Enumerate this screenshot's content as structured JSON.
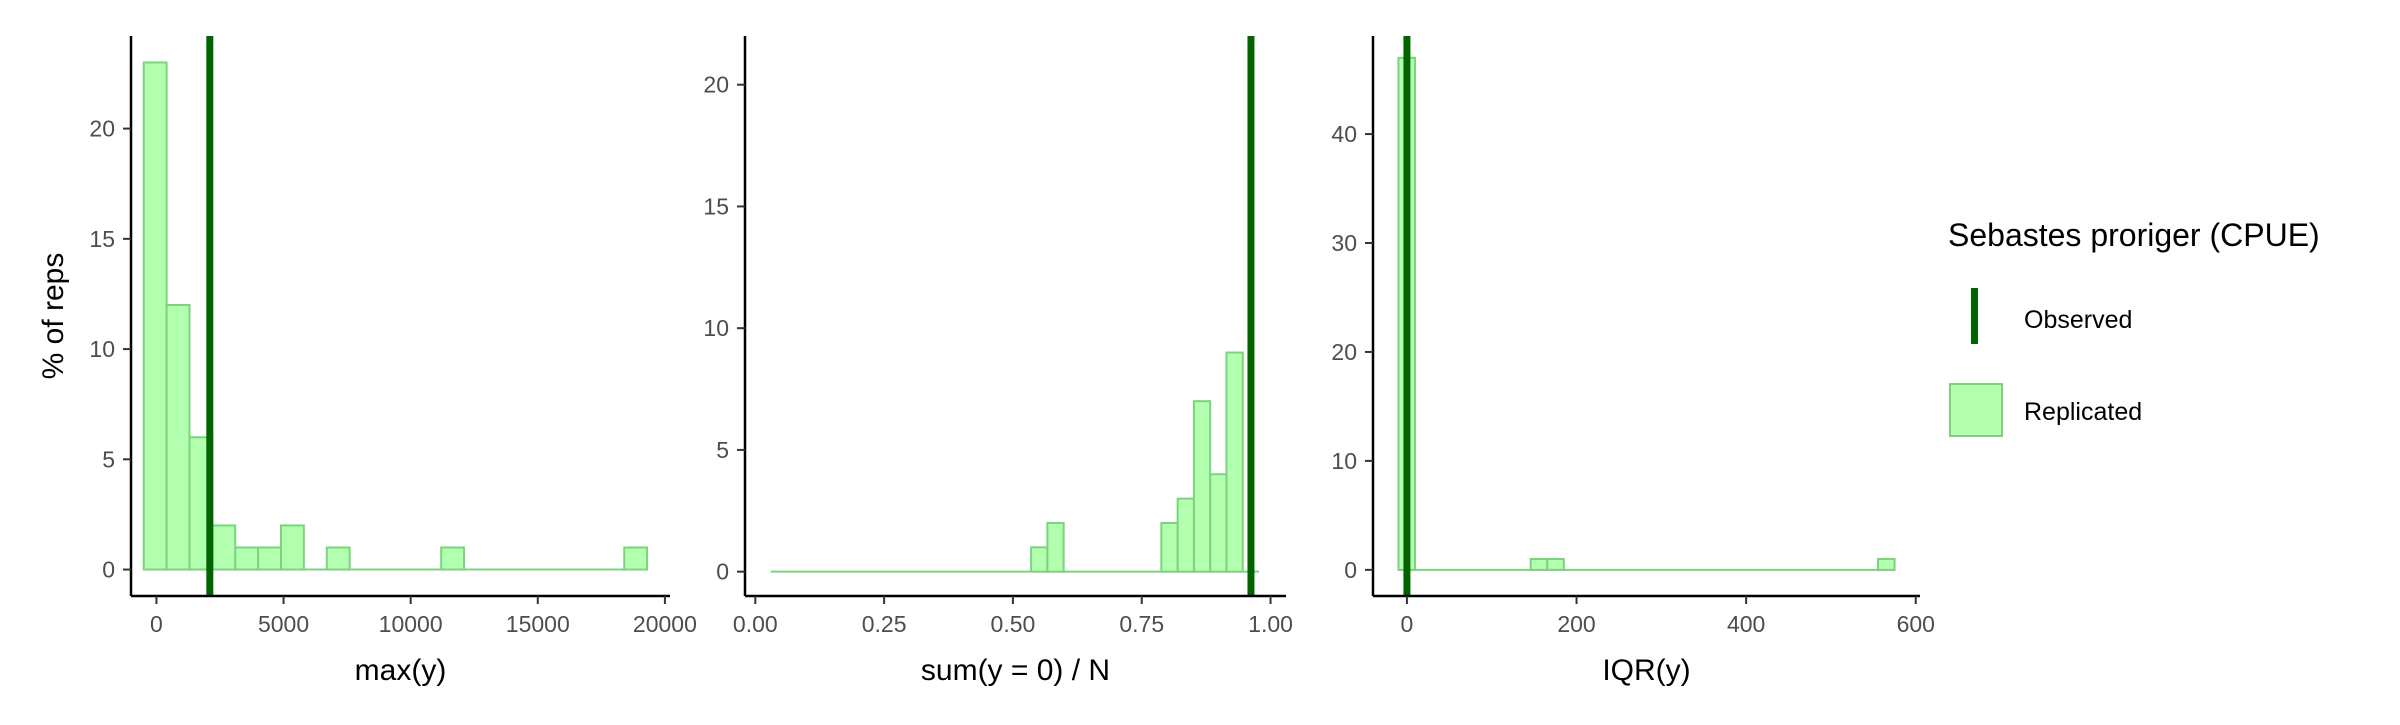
{
  "chart_data": [
    {
      "type": "bar",
      "panel": "max",
      "xlabel": "max(y)",
      "ylabel": "% of reps",
      "xlim": [
        -1000,
        20200
      ],
      "ylim": [
        -1.2,
        24.2
      ],
      "xticks": [
        0,
        5000,
        10000,
        15000,
        20000
      ],
      "xtick_labels": [
        "0",
        "5000",
        "10000",
        "15000",
        "20000"
      ],
      "yticks": [
        0,
        5,
        10,
        15,
        20
      ],
      "ytick_labels": [
        "0",
        "5",
        "10",
        "15",
        "20"
      ],
      "bin_start": -500,
      "bin_width": 900,
      "bin_count": 22,
      "bin_heights": [
        23,
        12,
        6,
        2,
        1,
        1,
        2,
        0,
        1,
        0,
        0,
        0,
        0,
        1,
        0,
        0,
        0,
        0,
        0,
        0,
        0,
        1
      ],
      "observed": 2100
    },
    {
      "type": "bar",
      "panel": "zero",
      "xlabel": "sum(y = 0) / N",
      "ylabel": "",
      "xlim": [
        -0.02,
        1.03
      ],
      "ylim": [
        -1.0,
        22.0
      ],
      "xticks": [
        0.0,
        0.25,
        0.5,
        0.75,
        1.0
      ],
      "xtick_labels": [
        "0.00",
        "0.25",
        "0.50",
        "0.75",
        "1.00"
      ],
      "yticks": [
        0,
        5,
        10,
        15,
        20
      ],
      "ytick_labels": [
        "0",
        "5",
        "10",
        "15",
        "20"
      ],
      "bin_start": 0.0297,
      "bin_width": 0.0316,
      "bin_count": 30,
      "bin_heights": [
        0,
        0,
        0,
        0,
        0,
        0,
        0,
        0,
        0,
        0,
        0,
        0,
        0,
        0,
        0,
        0,
        1,
        2,
        0,
        0,
        0,
        0,
        0,
        0,
        2,
        3,
        7,
        4,
        9,
        0
      ],
      "observed": 0.962
    },
    {
      "type": "bar",
      "panel": "iqr",
      "xlabel": "IQR(y)",
      "ylabel": "",
      "xlim": [
        -40,
        605
      ],
      "ylim": [
        -2.4,
        49.0
      ],
      "xticks": [
        0,
        200,
        400,
        600
      ],
      "xtick_labels": [
        "0",
        "200",
        "400",
        "600"
      ],
      "yticks": [
        0,
        10,
        20,
        30,
        40
      ],
      "ytick_labels": [
        "0",
        "10",
        "20",
        "30",
        "40"
      ],
      "bin_start": -10,
      "bin_width": 19.5,
      "bin_count": 30,
      "bin_heights": [
        47,
        0,
        0,
        0,
        0,
        0,
        0,
        0,
        1,
        1,
        0,
        0,
        0,
        0,
        0,
        0,
        0,
        0,
        0,
        0,
        0,
        0,
        0,
        0,
        0,
        0,
        0,
        0,
        0,
        1
      ],
      "observed": 0
    }
  ],
  "legend": {
    "title": "Sebastes proriger (CPUE)",
    "observed_label": "Observed",
    "replicated_label": "Replicated"
  },
  "colors": {
    "observed": "#006400",
    "replicated_fill": "#b3ffb0",
    "replicated_stroke": "#7dd37d",
    "axis": "#000000"
  }
}
